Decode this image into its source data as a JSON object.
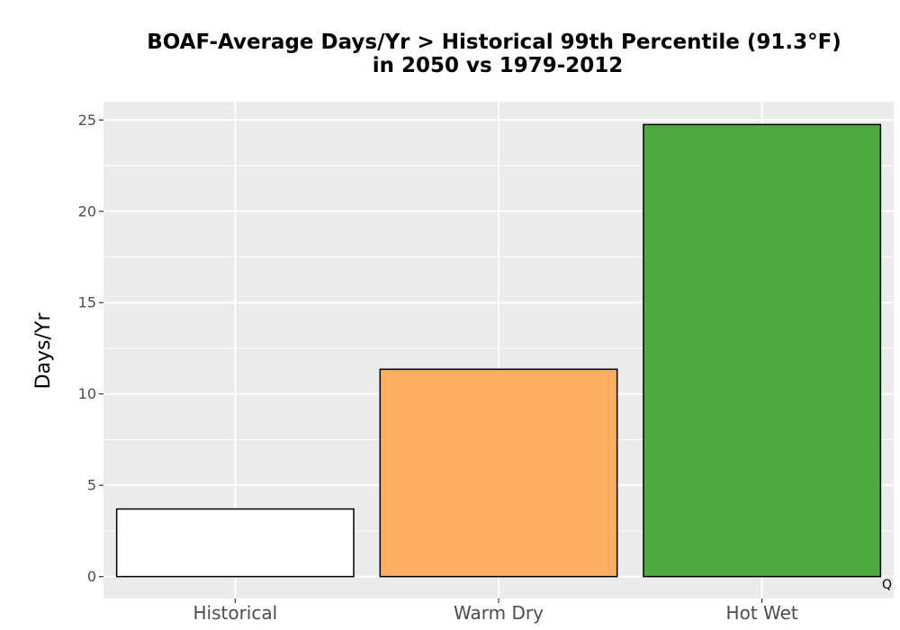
{
  "chart_data": {
    "type": "bar",
    "title_lines": [
      "BOAF-Average Days/Yr > Historical 99th Percentile (91.3°F)",
      "in 2050 vs 1979-2012"
    ],
    "xlabel": "",
    "ylabel": "Days/Yr",
    "categories": [
      "Historical",
      "Warm Dry",
      "Hot Wet"
    ],
    "values": [
      3.7,
      11.35,
      24.75
    ],
    "colors": [
      "#ffffff",
      "#fdae61",
      "#4daa3f"
    ],
    "ylim": [
      -1.2,
      26.0
    ],
    "yticks": [
      0,
      5,
      10,
      15,
      20,
      25
    ],
    "ytick_labels": [
      "0",
      "5",
      "10",
      "15",
      "20",
      "25"
    ],
    "grid": true,
    "panel_background": "#ebebeb",
    "bar_outline": "#000000",
    "corner_mark": "Q"
  }
}
